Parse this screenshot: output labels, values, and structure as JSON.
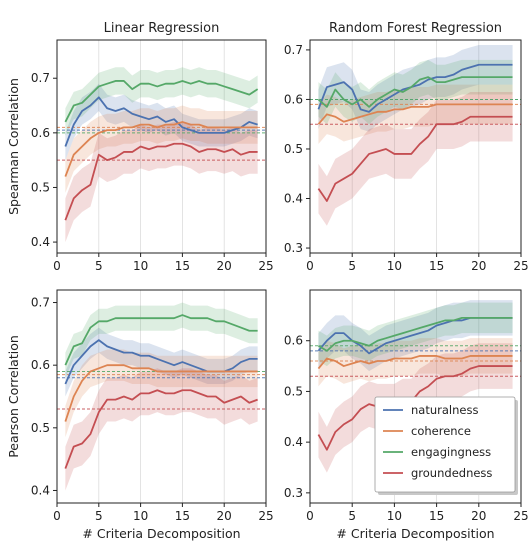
{
  "chart_data": {
    "type": "line",
    "layout": "2x2 grid",
    "column_titles": [
      "Linear Regression",
      "Random Forest Regression"
    ],
    "row_ylabels": [
      "Spearman Correlation",
      "Pearson Correlation"
    ],
    "xlabel": "# Criteria Decomposition",
    "xlim": [
      0,
      25
    ],
    "xticks": [
      0,
      5,
      10,
      15,
      20,
      25
    ],
    "grid": "vertical",
    "legend": {
      "placement": "bottom-right of lower-right panel",
      "entries": [
        "naturalness",
        "coherence",
        "engagingness",
        "groundedness"
      ]
    },
    "colors": {
      "naturalness": "#4C72B0",
      "coherence": "#DD8452",
      "engagingness": "#55A868",
      "groundedness": "#C44E52"
    },
    "x": [
      1,
      2,
      3,
      4,
      5,
      6,
      7,
      8,
      9,
      10,
      11,
      12,
      13,
      14,
      15,
      16,
      17,
      18,
      19,
      20,
      21,
      22,
      23,
      24
    ],
    "panels": [
      {
        "title": "Linear Regression",
        "ylabel": "Spearman Correlation",
        "ylim": [
          0.38,
          0.77
        ],
        "yticks": [
          0.4,
          0.5,
          0.6,
          0.7
        ],
        "baselines": [
          {
            "name": "naturalness",
            "value": 0.605
          },
          {
            "name": "coherence",
            "value": 0.61
          },
          {
            "name": "engagingness",
            "value": 0.6
          },
          {
            "name": "groundedness",
            "value": 0.55
          }
        ],
        "series": [
          {
            "name": "naturalness",
            "band": 0.025,
            "values": [
              0.575,
              0.615,
              0.64,
              0.65,
              0.665,
              0.645,
              0.64,
              0.645,
              0.635,
              0.63,
              0.625,
              0.63,
              0.62,
              0.625,
              0.61,
              0.605,
              0.6,
              0.6,
              0.6,
              0.6,
              0.605,
              0.61,
              0.62,
              0.615
            ]
          },
          {
            "name": "coherence",
            "band": 0.03,
            "values": [
              0.52,
              0.56,
              0.575,
              0.59,
              0.6,
              0.605,
              0.605,
              0.61,
              0.61,
              0.615,
              0.615,
              0.61,
              0.615,
              0.615,
              0.62,
              0.615,
              0.615,
              0.61,
              0.61,
              0.61,
              0.61,
              0.61,
              0.61,
              0.61
            ]
          },
          {
            "name": "engagingness",
            "band": 0.025,
            "values": [
              0.62,
              0.65,
              0.655,
              0.67,
              0.685,
              0.69,
              0.695,
              0.695,
              0.68,
              0.69,
              0.69,
              0.685,
              0.69,
              0.69,
              0.695,
              0.69,
              0.695,
              0.69,
              0.69,
              0.685,
              0.68,
              0.675,
              0.67,
              0.68
            ]
          },
          {
            "name": "groundedness",
            "band": 0.04,
            "values": [
              0.44,
              0.48,
              0.495,
              0.505,
              0.56,
              0.55,
              0.555,
              0.565,
              0.565,
              0.575,
              0.57,
              0.575,
              0.575,
              0.58,
              0.58,
              0.575,
              0.565,
              0.57,
              0.57,
              0.565,
              0.57,
              0.56,
              0.565,
              0.565
            ]
          }
        ]
      },
      {
        "title": "Random Forest Regression",
        "ylabel": "",
        "ylim": [
          0.29,
          0.72
        ],
        "yticks": [
          0.3,
          0.4,
          0.5,
          0.6,
          0.7
        ],
        "baselines": [
          {
            "name": "naturalness",
            "value": 0.6
          },
          {
            "name": "coherence",
            "value": 0.59
          },
          {
            "name": "engagingness",
            "value": 0.6
          },
          {
            "name": "groundedness",
            "value": 0.55
          }
        ],
        "series": [
          {
            "name": "naturalness",
            "band": 0.04,
            "values": [
              0.58,
              0.625,
              0.63,
              0.635,
              0.62,
              0.58,
              0.575,
              0.59,
              0.6,
              0.61,
              0.62,
              0.625,
              0.63,
              0.64,
              0.645,
              0.645,
              0.65,
              0.66,
              0.665,
              0.67,
              0.67,
              0.67,
              0.67,
              0.67
            ]
          },
          {
            "name": "coherence",
            "band": 0.04,
            "values": [
              0.55,
              0.57,
              0.565,
              0.555,
              0.56,
              0.565,
              0.57,
              0.575,
              0.575,
              0.58,
              0.58,
              0.585,
              0.585,
              0.585,
              0.59,
              0.59,
              0.59,
              0.59,
              0.59,
              0.59,
              0.59,
              0.59,
              0.59,
              0.59
            ]
          },
          {
            "name": "engagingness",
            "band": 0.035,
            "values": [
              0.6,
              0.585,
              0.62,
              0.6,
              0.59,
              0.6,
              0.585,
              0.6,
              0.61,
              0.62,
              0.615,
              0.625,
              0.64,
              0.645,
              0.635,
              0.635,
              0.64,
              0.645,
              0.645,
              0.645,
              0.645,
              0.645,
              0.645,
              0.645
            ]
          },
          {
            "name": "groundedness",
            "band": 0.05,
            "values": [
              0.42,
              0.395,
              0.43,
              0.44,
              0.45,
              0.47,
              0.49,
              0.495,
              0.5,
              0.49,
              0.49,
              0.49,
              0.51,
              0.525,
              0.55,
              0.55,
              0.55,
              0.555,
              0.565,
              0.565,
              0.565,
              0.565,
              0.565,
              0.565
            ]
          }
        ]
      },
      {
        "title": "",
        "ylabel": "Pearson Correlation",
        "ylim": [
          0.38,
          0.72
        ],
        "yticks": [
          0.4,
          0.5,
          0.6,
          0.7
        ],
        "baselines": [
          {
            "name": "naturalness",
            "value": 0.58
          },
          {
            "name": "coherence",
            "value": 0.585
          },
          {
            "name": "engagingness",
            "value": 0.59
          },
          {
            "name": "groundedness",
            "value": 0.53
          }
        ],
        "series": [
          {
            "name": "naturalness",
            "band": 0.02,
            "values": [
              0.57,
              0.6,
              0.615,
              0.63,
              0.64,
              0.63,
              0.625,
              0.62,
              0.62,
              0.615,
              0.615,
              0.61,
              0.605,
              0.6,
              0.605,
              0.6,
              0.595,
              0.59,
              0.59,
              0.59,
              0.595,
              0.605,
              0.61,
              0.61
            ]
          },
          {
            "name": "coherence",
            "band": 0.025,
            "values": [
              0.51,
              0.55,
              0.575,
              0.59,
              0.595,
              0.6,
              0.6,
              0.6,
              0.595,
              0.595,
              0.595,
              0.59,
              0.59,
              0.59,
              0.59,
              0.59,
              0.59,
              0.59,
              0.59,
              0.59,
              0.59,
              0.59,
              0.59,
              0.59
            ]
          },
          {
            "name": "engagingness",
            "band": 0.02,
            "values": [
              0.6,
              0.63,
              0.635,
              0.66,
              0.67,
              0.67,
              0.675,
              0.675,
              0.675,
              0.675,
              0.675,
              0.675,
              0.675,
              0.675,
              0.68,
              0.675,
              0.675,
              0.675,
              0.67,
              0.67,
              0.665,
              0.66,
              0.655,
              0.655
            ]
          },
          {
            "name": "groundedness",
            "band": 0.035,
            "values": [
              0.435,
              0.47,
              0.475,
              0.49,
              0.525,
              0.545,
              0.545,
              0.55,
              0.545,
              0.555,
              0.555,
              0.56,
              0.555,
              0.555,
              0.56,
              0.56,
              0.555,
              0.55,
              0.55,
              0.54,
              0.545,
              0.55,
              0.54,
              0.545
            ]
          }
        ]
      },
      {
        "title": "",
        "ylabel": "",
        "ylim": [
          0.28,
          0.7
        ],
        "yticks": [
          0.3,
          0.4,
          0.5,
          0.6
        ],
        "baselines": [
          {
            "name": "naturalness",
            "value": 0.58
          },
          {
            "name": "coherence",
            "value": 0.56
          },
          {
            "name": "engagingness",
            "value": 0.59
          },
          {
            "name": "groundedness",
            "value": 0.53
          }
        ],
        "series": [
          {
            "name": "naturalness",
            "band": 0.035,
            "values": [
              0.58,
              0.6,
              0.615,
              0.615,
              0.6,
              0.59,
              0.575,
              0.585,
              0.595,
              0.6,
              0.605,
              0.61,
              0.615,
              0.62,
              0.63,
              0.635,
              0.64,
              0.64,
              0.645,
              0.645,
              0.645,
              0.645,
              0.645,
              0.645
            ]
          },
          {
            "name": "coherence",
            "band": 0.035,
            "values": [
              0.545,
              0.565,
              0.56,
              0.55,
              0.555,
              0.56,
              0.555,
              0.56,
              0.56,
              0.565,
              0.565,
              0.565,
              0.57,
              0.57,
              0.57,
              0.565,
              0.565,
              0.565,
              0.57,
              0.57,
              0.57,
              0.57,
              0.57,
              0.57
            ]
          },
          {
            "name": "engagingness",
            "band": 0.03,
            "values": [
              0.59,
              0.58,
              0.595,
              0.6,
              0.6,
              0.595,
              0.59,
              0.6,
              0.605,
              0.61,
              0.615,
              0.62,
              0.625,
              0.63,
              0.635,
              0.64,
              0.64,
              0.645,
              0.645,
              0.645,
              0.645,
              0.645,
              0.645,
              0.645
            ]
          },
          {
            "name": "groundedness",
            "band": 0.045,
            "values": [
              0.415,
              0.385,
              0.42,
              0.435,
              0.445,
              0.465,
              0.475,
              0.47,
              0.47,
              0.47,
              0.48,
              0.48,
              0.5,
              0.51,
              0.525,
              0.53,
              0.53,
              0.535,
              0.545,
              0.55,
              0.55,
              0.55,
              0.55,
              0.55
            ]
          }
        ]
      }
    ]
  }
}
